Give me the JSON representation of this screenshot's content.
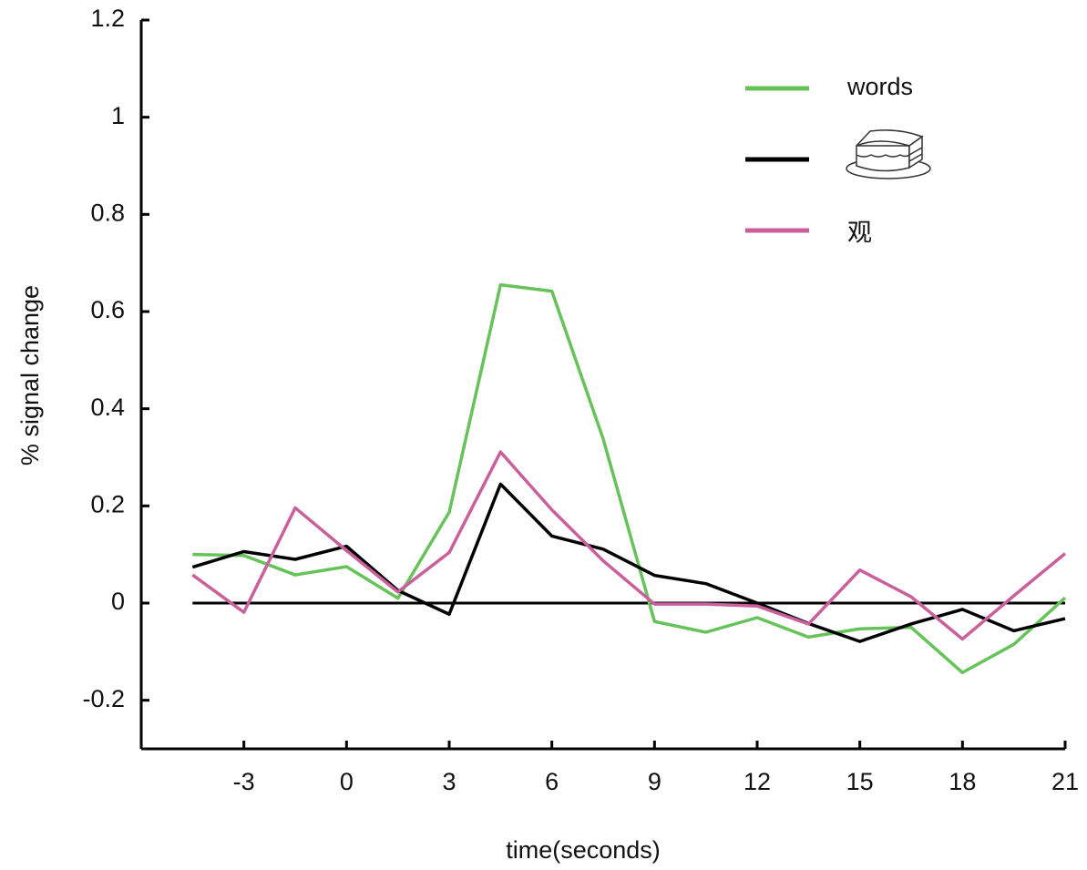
{
  "chart_data": {
    "type": "line",
    "x_label": "time(seconds)",
    "y_label": "% signal change",
    "x": [
      -4.5,
      -3,
      -1.5,
      0,
      1.5,
      3,
      4.5,
      6,
      7.5,
      9,
      10.5,
      12,
      13.5,
      15,
      16.5,
      18,
      19.5,
      21
    ],
    "series": [
      {
        "name": "words",
        "color": "#66c35a",
        "values": [
          0.1,
          0.098,
          0.058,
          0.075,
          0.01,
          0.187,
          0.655,
          0.642,
          0.338,
          -0.038,
          -0.06,
          -0.03,
          -0.07,
          -0.053,
          -0.05,
          -0.143,
          -0.085,
          0.011
        ]
      },
      {
        "name": null,
        "color": "#000000",
        "values": [
          0.074,
          0.106,
          0.09,
          0.117,
          0.026,
          -0.023,
          0.245,
          0.138,
          0.111,
          0.057,
          0.04,
          0,
          -0.042,
          -0.079,
          -0.043,
          -0.013,
          -0.057,
          -0.032
        ]
      },
      {
        "name": "观",
        "color": "#c9609c",
        "values": [
          0.058,
          -0.019,
          0.196,
          0.108,
          0.023,
          0.104,
          0.311,
          0.192,
          0.087,
          -0.002,
          -0.002,
          -0.006,
          -0.043,
          0.068,
          0.013,
          -0.074,
          0.015,
          0.102
        ]
      }
    ],
    "hlines": [
      0
    ],
    "xlim": [
      -6,
      21
    ],
    "xticks": [
      -3,
      0,
      3,
      6,
      9,
      12,
      15,
      18,
      21
    ],
    "ylim": [
      -0.3,
      1.2
    ],
    "yticks": [
      -0.2,
      0,
      0.2,
      0.4,
      0.6,
      0.8,
      1,
      1.2
    ],
    "legend": "upper-right",
    "grid": false
  }
}
